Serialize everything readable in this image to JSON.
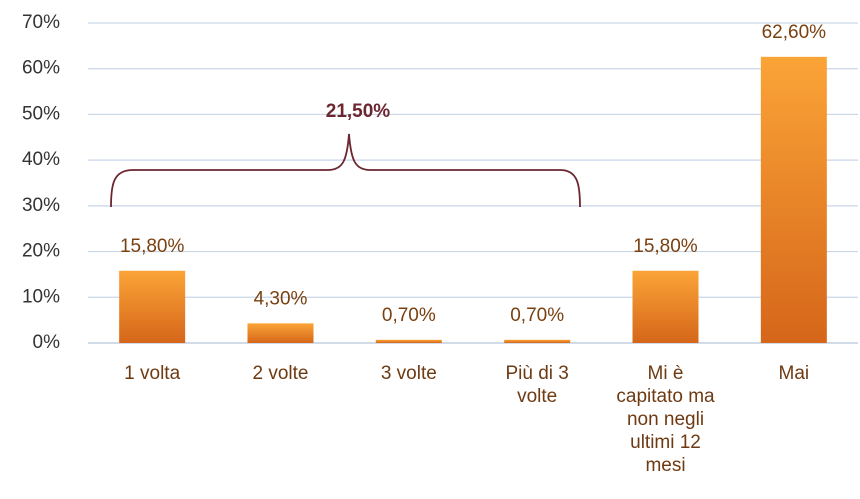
{
  "chart_data": {
    "type": "bar",
    "categories": [
      "1 volta",
      "2 volte",
      "3 volte",
      "Più di 3 volte",
      "Mi è capitato ma non negli ultimi 12 mesi",
      "Mai"
    ],
    "values": [
      15.8,
      4.3,
      0.7,
      0.7,
      15.8,
      62.6
    ],
    "value_labels": [
      "15,80%",
      "4,30%",
      "0,70%",
      "0,70%",
      "15,80%",
      "62,60%"
    ],
    "color": "#f0861f",
    "ylim": [
      0,
      70
    ],
    "yticks": [
      {
        "value": 0,
        "label": "0%"
      },
      {
        "value": 10,
        "label": "10%"
      },
      {
        "value": 20,
        "label": "20%"
      },
      {
        "value": 30,
        "label": "30%"
      },
      {
        "value": 40,
        "label": "40%"
      },
      {
        "value": 50,
        "label": "50%"
      },
      {
        "value": 60,
        "label": "60%"
      },
      {
        "value": 70,
        "label": "70%"
      }
    ],
    "grid": true,
    "annotations": [
      "21,50%"
    ]
  }
}
